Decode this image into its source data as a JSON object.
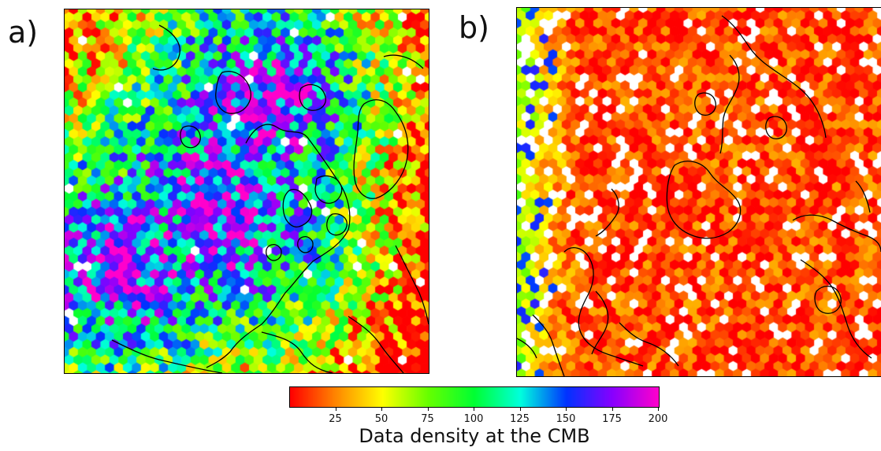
{
  "panels": [
    {
      "label": "a)",
      "scheme": "high-density"
    },
    {
      "label": "b)",
      "scheme": "low-density"
    }
  ],
  "colorbar": {
    "title": "Data density at the CMB",
    "min": 0,
    "max": 200,
    "ticks": [
      "25",
      "50",
      "75",
      "100",
      "125",
      "150",
      "175",
      "200"
    ],
    "tick_values": [
      25,
      50,
      75,
      100,
      125,
      150,
      175,
      200
    ],
    "colormap": "gist_rainbow (red to magenta)",
    "colors": [
      "#ff0000",
      "#ff8800",
      "#ffff00",
      "#66ff00",
      "#00ff33",
      "#00ffdd",
      "#0033ff",
      "#8800ff",
      "#ff00cc"
    ]
  },
  "map": {
    "cell_shape": "hexagon",
    "coastline_color": "#000000",
    "empty_cell_color": "#ffffff"
  }
}
